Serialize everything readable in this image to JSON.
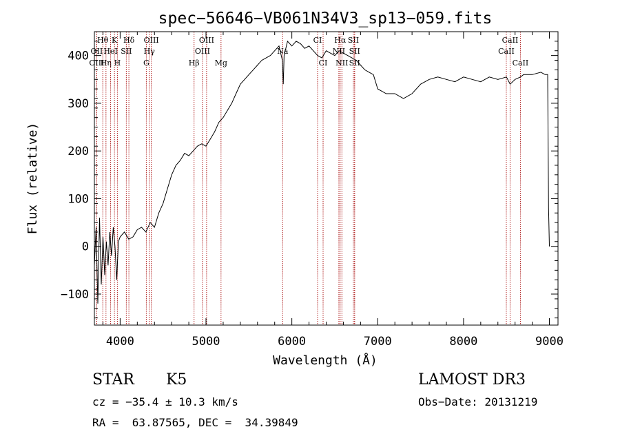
{
  "chart_data": {
    "type": "line",
    "title": "spec−56646−VB061N34V3_sp13−059.fits",
    "xlabel": "Wavelength (Å)",
    "ylabel": "Flux (relative)",
    "xlim": [
      3700,
      9100
    ],
    "ylim": [
      -165,
      450
    ],
    "x_ticks": [
      4000,
      5000,
      6000,
      7000,
      8000,
      9000
    ],
    "y_ticks": [
      -100,
      0,
      100,
      200,
      300,
      400
    ],
    "y_tick_labels": [
      "−100",
      "0",
      "100",
      "200",
      "300",
      "400"
    ],
    "grid": false,
    "line_color": "#000000",
    "marker_color": "#b02020",
    "spectrum": {
      "x": [
        3700,
        3720,
        3740,
        3760,
        3780,
        3800,
        3820,
        3840,
        3860,
        3880,
        3900,
        3920,
        3940,
        3960,
        3980,
        4000,
        4050,
        4100,
        4150,
        4200,
        4250,
        4300,
        4350,
        4400,
        4450,
        4500,
        4550,
        4600,
        4650,
        4700,
        4750,
        4800,
        4850,
        4900,
        4950,
        5000,
        5050,
        5100,
        5150,
        5200,
        5250,
        5300,
        5350,
        5400,
        5450,
        5500,
        5550,
        5600,
        5650,
        5700,
        5750,
        5800,
        5850,
        5890,
        5900,
        5910,
        5950,
        6000,
        6050,
        6100,
        6150,
        6200,
        6250,
        6300,
        6350,
        6400,
        6450,
        6500,
        6550,
        6600,
        6650,
        6700,
        6750,
        6800,
        6850,
        6900,
        6950,
        7000,
        7100,
        7200,
        7300,
        7400,
        7500,
        7600,
        7700,
        7800,
        7900,
        8000,
        8100,
        8200,
        8300,
        8400,
        8500,
        8542,
        8600,
        8662,
        8700,
        8800,
        8900,
        8950,
        8980,
        8990,
        9000
      ],
      "y": [
        -40,
        40,
        -120,
        60,
        -80,
        20,
        -60,
        10,
        -40,
        30,
        -20,
        40,
        0,
        -70,
        10,
        20,
        30,
        15,
        20,
        35,
        40,
        30,
        50,
        40,
        70,
        90,
        120,
        150,
        170,
        180,
        195,
        190,
        200,
        210,
        215,
        210,
        225,
        240,
        260,
        270,
        285,
        300,
        320,
        340,
        350,
        360,
        370,
        380,
        390,
        395,
        400,
        410,
        420,
        390,
        340,
        400,
        430,
        420,
        430,
        425,
        415,
        420,
        410,
        400,
        395,
        410,
        405,
        400,
        410,
        405,
        400,
        395,
        390,
        380,
        370,
        365,
        360,
        330,
        320,
        320,
        310,
        320,
        340,
        350,
        355,
        350,
        345,
        355,
        350,
        345,
        355,
        350,
        355,
        340,
        350,
        355,
        360,
        360,
        365,
        360,
        360,
        80,
        0
      ]
    },
    "lines": [
      {
        "label": "Hθ",
        "wavelength": 3798,
        "row": 1
      },
      {
        "label": "OII",
        "wavelength": 3727,
        "row": 2
      },
      {
        "label": "OIII",
        "wavelength": 3727,
        "row": 3
      },
      {
        "label": "Hη",
        "wavelength": 3835,
        "row": 3
      },
      {
        "label": "HeI",
        "wavelength": 3889,
        "row": 2
      },
      {
        "label": "K",
        "wavelength": 3934,
        "row": 1
      },
      {
        "label": "H",
        "wavelength": 3968,
        "row": 3
      },
      {
        "label": "SII",
        "wavelength": 4072,
        "row": 2
      },
      {
        "label": "Hδ",
        "wavelength": 4102,
        "row": 1
      },
      {
        "label": "OIII",
        "wavelength": 4363,
        "row": 1
      },
      {
        "label": "Hγ",
        "wavelength": 4340,
        "row": 2
      },
      {
        "label": "G",
        "wavelength": 4305,
        "row": 3
      },
      {
        "label": "Hβ",
        "wavelength": 4861,
        "row": 3
      },
      {
        "label": "OIII",
        "wavelength": 4959,
        "row": 2
      },
      {
        "label": "OIII",
        "wavelength": 5007,
        "row": 1
      },
      {
        "label": "Mg",
        "wavelength": 5175,
        "row": 3
      },
      {
        "label": "Na",
        "wavelength": 5893,
        "row": 2
      },
      {
        "label": "CI",
        "wavelength": 6300,
        "row": 1
      },
      {
        "label": "CI",
        "wavelength": 6364,
        "row": 3
      },
      {
        "label": "Hα",
        "wavelength": 6563,
        "row": 1
      },
      {
        "label": "NII",
        "wavelength": 6548,
        "row": 2
      },
      {
        "label": "NII",
        "wavelength": 6583,
        "row": 3
      },
      {
        "label": "SII",
        "wavelength": 6717,
        "row": 1
      },
      {
        "label": "SII",
        "wavelength": 6731,
        "row": 2
      },
      {
        "label": "SII",
        "wavelength": 6731,
        "row": 3
      },
      {
        "label": "CaII",
        "wavelength": 8542,
        "row": 1
      },
      {
        "label": "CaII",
        "wavelength": 8498,
        "row": 2
      },
      {
        "label": "CaII",
        "wavelength": 8662,
        "row": 3
      }
    ]
  },
  "info": {
    "object_class": "STAR",
    "subclass": "K5",
    "survey": "LAMOST DR3",
    "redshift": "cz = −35.4 ± 10.3 km/s",
    "obs_date": "Obs−Date: 20131219",
    "coords": "RA =  63.87565, DEC =  34.39849"
  }
}
